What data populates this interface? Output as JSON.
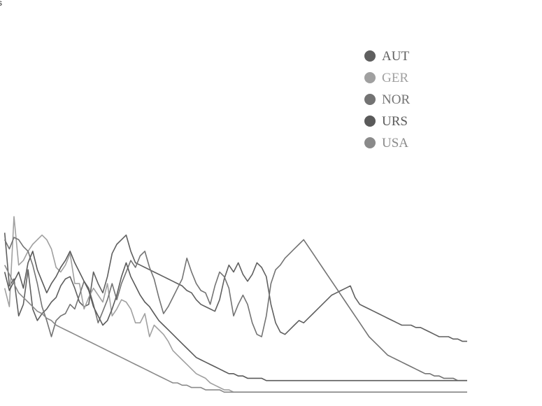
{
  "chart_data": {
    "type": "line",
    "top_label": "ss",
    "x": [
      0,
      1,
      2,
      3,
      4,
      5,
      6,
      7,
      8,
      9,
      10,
      11,
      12,
      13,
      14,
      15,
      16,
      17,
      18,
      19,
      20,
      21,
      22,
      23,
      24,
      25,
      26,
      27,
      28,
      29,
      30,
      31,
      32,
      33,
      34,
      35,
      36,
      37,
      38,
      39,
      40,
      41,
      42,
      43,
      44,
      45,
      46,
      47,
      48,
      49,
      50,
      51,
      52,
      53,
      54,
      55,
      56,
      57,
      58,
      59,
      60,
      61,
      62,
      63,
      64,
      65,
      66,
      67,
      68,
      69,
      70,
      71,
      72,
      73,
      74,
      75,
      76,
      77,
      78,
      79,
      80,
      81,
      82,
      83,
      84,
      85,
      86,
      87,
      88,
      89,
      90,
      91,
      92,
      93,
      94,
      95,
      96,
      97,
      98,
      99,
      100
    ],
    "ylim": [
      0,
      100
    ],
    "legend": "top-right",
    "series": [
      {
        "name": "AUT",
        "color": "#5f5f5f",
        "values": [
          null,
          75,
          52,
          55,
          39,
          44,
          59,
          42,
          37,
          40,
          42,
          45,
          47,
          52,
          55,
          56,
          51,
          45,
          43,
          44,
          58,
          53,
          49,
          56,
          66,
          70,
          72,
          74,
          67,
          62,
          61,
          60,
          59,
          58,
          57,
          56,
          55,
          54,
          53,
          52,
          50,
          49,
          46,
          44,
          43,
          42,
          41,
          46,
          55,
          61,
          58,
          62,
          57,
          54,
          57,
          62,
          60,
          56,
          44,
          36,
          32,
          31,
          33,
          35,
          37,
          36,
          38,
          40,
          42,
          44,
          46,
          48,
          49,
          50,
          51,
          52,
          47,
          44,
          43,
          42,
          41,
          40,
          39,
          38,
          37,
          36,
          35,
          35,
          35,
          34,
          34,
          33,
          32,
          31,
          30,
          30,
          30,
          29,
          29,
          28,
          28
        ]
      },
      {
        "name": "GER",
        "color": "#a0a0a0",
        "values": [
          null,
          51,
          43,
          82,
          61,
          63,
          67,
          70,
          72,
          74,
          72,
          68,
          60,
          58,
          61,
          66,
          53,
          53,
          42,
          47,
          51,
          48,
          45,
          53,
          39,
          42,
          46,
          45,
          42,
          36,
          36,
          40,
          30,
          35,
          33,
          31,
          28,
          24,
          22,
          20,
          18,
          16,
          14,
          13,
          12,
          10,
          9,
          8,
          7,
          7,
          6,
          6,
          6,
          6,
          6,
          6,
          6,
          6,
          6,
          6,
          6,
          6,
          6,
          6,
          6,
          6,
          6,
          6,
          6,
          6,
          6,
          6,
          6,
          6,
          6,
          6,
          6,
          6,
          6,
          6,
          6,
          6,
          6,
          6,
          6,
          6,
          6,
          6,
          6,
          6,
          6,
          6,
          6,
          6,
          6,
          6,
          6,
          6,
          6,
          6,
          6
        ]
      },
      {
        "name": "NOR",
        "color": "#737373",
        "values": [
          null,
          72,
          68,
          73,
          72,
          69,
          67,
          61,
          53,
          43,
          37,
          30,
          37,
          39,
          40,
          44,
          42,
          48,
          54,
          51,
          44,
          36,
          41,
          46,
          53,
          46,
          53,
          58,
          63,
          60,
          65,
          67,
          60,
          55,
          47,
          40,
          43,
          47,
          51,
          55,
          64,
          58,
          53,
          50,
          49,
          44,
          52,
          58,
          56,
          51,
          39,
          44,
          48,
          44,
          36,
          31,
          30,
          39,
          53,
          59,
          61,
          64,
          66,
          68,
          70,
          72,
          69,
          66,
          63,
          60,
          57,
          54,
          51,
          48,
          45,
          42,
          39,
          36,
          33,
          30,
          28,
          26,
          24,
          22,
          21,
          20,
          19,
          18,
          17,
          16,
          15,
          14,
          14,
          13,
          13,
          12,
          12,
          12,
          11,
          11,
          11
        ]
      },
      {
        "name": "URS",
        "color": "#5a5a5a",
        "values": [
          null,
          58,
          50,
          54,
          58,
          51,
          62,
          67,
          59,
          54,
          49,
          53,
          56,
          60,
          63,
          67,
          62,
          58,
          54,
          50,
          43,
          39,
          35,
          37,
          42,
          48,
          56,
          62,
          56,
          52,
          48,
          45,
          43,
          40,
          37,
          35,
          33,
          31,
          29,
          27,
          25,
          23,
          21,
          20,
          19,
          18,
          17,
          16,
          15,
          14,
          14,
          13,
          13,
          12,
          12,
          12,
          12,
          11,
          11,
          11,
          11,
          11,
          11,
          11,
          11,
          11,
          11,
          11,
          11,
          11,
          11,
          11,
          11,
          11,
          11,
          11,
          11,
          11,
          11,
          11,
          11,
          11,
          11,
          11,
          11,
          11,
          11,
          11,
          11,
          11,
          11,
          11,
          11,
          11,
          11,
          11,
          11,
          11,
          11,
          11,
          11
        ]
      },
      {
        "name": "USA",
        "color": "#8a8a8a",
        "values": [
          null,
          61,
          57,
          53,
          49,
          47,
          45,
          43,
          41,
          40,
          38,
          37,
          35,
          34,
          33,
          32,
          31,
          30,
          29,
          28,
          27,
          26,
          25,
          24,
          23,
          22,
          21,
          20,
          19,
          18,
          17,
          16,
          15,
          14,
          13,
          12,
          11,
          10,
          10,
          9,
          9,
          8,
          8,
          8,
          7,
          7,
          7,
          7,
          6,
          6,
          6,
          6,
          6,
          6,
          6,
          6,
          6,
          6,
          6,
          6,
          6,
          6,
          6,
          6,
          6,
          6,
          6,
          6,
          6,
          6,
          6,
          6,
          6,
          6,
          6,
          6,
          6,
          6,
          6,
          6,
          6,
          6,
          6,
          6,
          6,
          6,
          6,
          6,
          6,
          6,
          6,
          6,
          6,
          6,
          6,
          6,
          6,
          6,
          6,
          6,
          6
        ]
      }
    ]
  }
}
